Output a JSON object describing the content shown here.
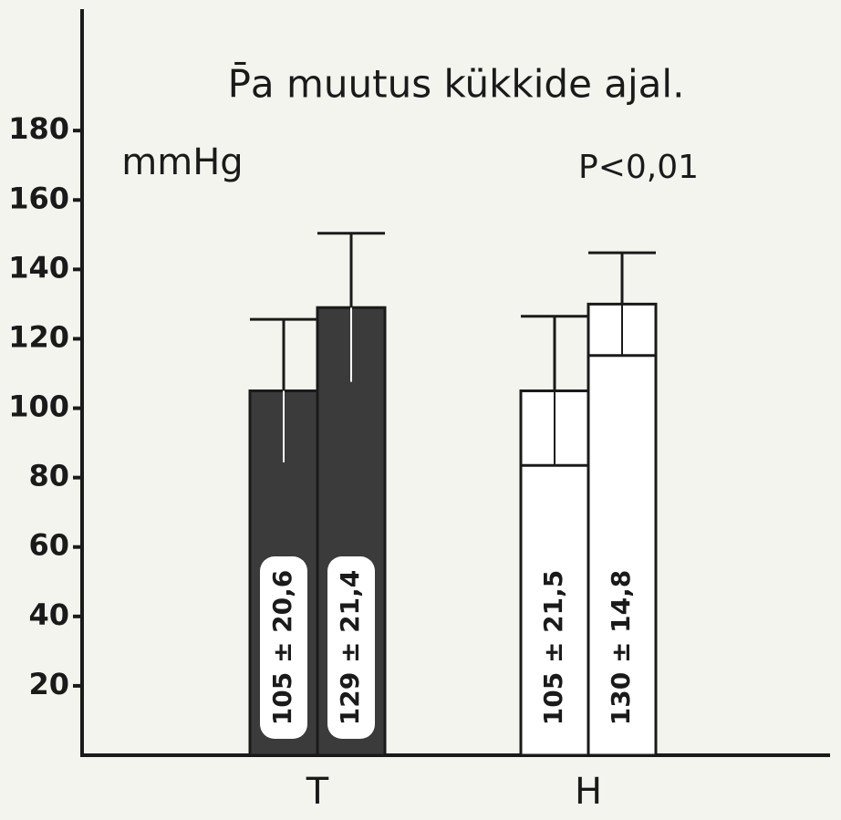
{
  "chart_data": {
    "type": "bar",
    "title": "P̄a muutus kükkide ajal.",
    "y_label": "mmHg",
    "annotation": "P<0,01",
    "categories": [
      "T",
      "H"
    ],
    "category_colors": [
      "#3b3b3b",
      "#ffffff"
    ],
    "series": [
      {
        "values": [
          105,
          105
        ],
        "errors": [
          20.6,
          21.5
        ],
        "value_labels": [
          "105 ± 20,6",
          "105 ± 21,5"
        ]
      },
      {
        "values": [
          129,
          130
        ],
        "errors": [
          21.4,
          14.8
        ],
        "value_labels": [
          "129 ± 21,4",
          "130 ± 14,8"
        ]
      }
    ],
    "ylim": [
      0,
      215
    ],
    "yticks": [
      20,
      40,
      60,
      80,
      100,
      120,
      140,
      160,
      180
    ]
  }
}
